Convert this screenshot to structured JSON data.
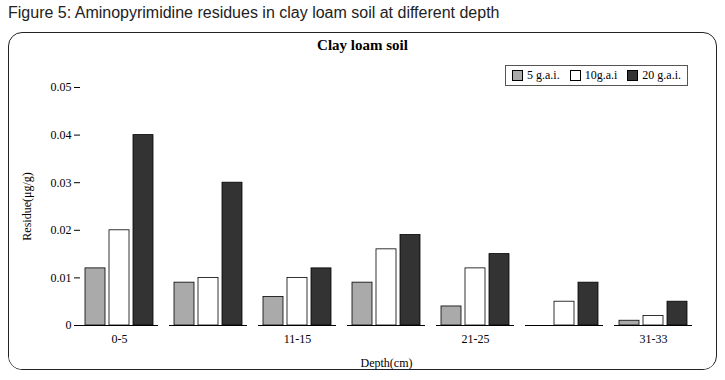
{
  "chart_data": {
    "type": "bar",
    "caption": "Figure 5: Aminopyrimidine residues in clay loam soil at different depth",
    "title": "Clay loam soil",
    "x_label": "Depth(cm)",
    "y_label": "Residue(μg/g)",
    "categories": [
      "0-5",
      null,
      "11-15",
      null,
      "21-25",
      null,
      "31-33"
    ],
    "series": [
      {
        "name": "5 g.a.i.",
        "color": "#aaaaaa",
        "values": [
          0.012,
          0.009,
          0.006,
          0.009,
          0.004,
          0,
          0.001
        ]
      },
      {
        "name": "10g.a.i",
        "color": "#ffffff",
        "values": [
          0.02,
          0.01,
          0.01,
          0.016,
          0.012,
          0.005,
          0.002
        ]
      },
      {
        "name": "20 g.a.i.",
        "color": "#333333",
        "values": [
          0.04,
          0.03,
          0.012,
          0.019,
          0.015,
          0.009,
          0.005
        ]
      }
    ],
    "ylim": [
      0,
      0.05
    ],
    "yticks": [
      0,
      0.01,
      0.02,
      0.03,
      0.04,
      0.05
    ],
    "grid": false,
    "legend": "top-right"
  }
}
